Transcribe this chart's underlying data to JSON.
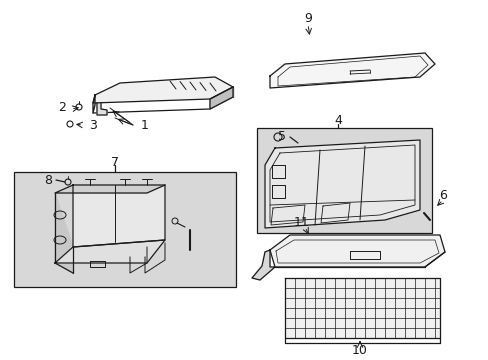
{
  "bg_color": "#ffffff",
  "line_color": "#1a1a1a",
  "box_bg_7": "#d8d8d8",
  "box_bg_4": "#d8d8d8",
  "fig_width": 4.89,
  "fig_height": 3.6,
  "dpi": 100
}
